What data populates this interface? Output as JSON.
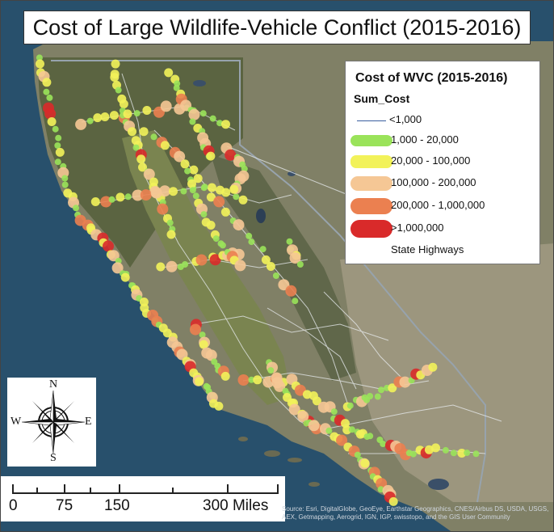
{
  "title": "Cost of Large Wildlife-Vehicle Conflict (2015-2016)",
  "legend": {
    "title": "Cost of WVC (2015-2016)",
    "field": "Sum_Cost",
    "items": [
      {
        "label": "<1,000",
        "color": "#3a5fa0",
        "kind": "line"
      },
      {
        "label": "1,000 - 20,000",
        "color": "#9ae35a",
        "kind": "pill"
      },
      {
        "label": "20,000 - 100,000",
        "color": "#f2f25a",
        "kind": "pill"
      },
      {
        "label": "100,000 - 200,000",
        "color": "#f5c795",
        "kind": "pill"
      },
      {
        "label": "200,000 - 1,000,000",
        "color": "#eb8050",
        "kind": "pill"
      },
      {
        "label": ">1,000,000",
        "color": "#d92a2a",
        "kind": "pill"
      },
      {
        "label": "State Highways",
        "color": "#ffffff",
        "kind": "none"
      }
    ]
  },
  "compass": {
    "n": "N",
    "s": "S",
    "e": "E",
    "w": "W"
  },
  "scale": {
    "labels": [
      "0",
      "75",
      "150",
      "300 Miles"
    ]
  },
  "attribution": "Source: Esri, DigitalGlobe, GeoEye, Earthstar Geographics, CNES/Airbus DS, USDA, USGS, AEX, Getmapping, Aerogrid, IGN, IGP, swisstopo, and the GIS User Community",
  "colors": {
    "ocean": "#28506c",
    "land": "#7f8066",
    "valley": "#6f7a4a",
    "forest": "#4f5d3a",
    "desert": "#9d947c",
    "state_line": "#8e9aa4"
  }
}
